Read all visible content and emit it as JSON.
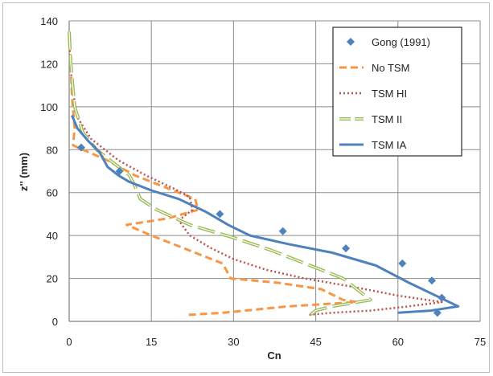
{
  "chart_data": {
    "type": "line",
    "title": "",
    "xlabel": "Cn",
    "ylabel": "z'' (mm)",
    "xlim": [
      0,
      75
    ],
    "ylim": [
      0,
      140
    ],
    "x_ticks": [
      "0",
      "15",
      "30",
      "45",
      "60",
      "75"
    ],
    "y_ticks": [
      "0",
      "20",
      "40",
      "60",
      "80",
      "100",
      "120",
      "140"
    ],
    "grid": true,
    "legend_position": "top-right",
    "series": [
      {
        "name": "Gong (1991)",
        "kind": "marker",
        "color": "#4f81bd",
        "points": [
          [
            2.2,
            81
          ],
          [
            9.2,
            70
          ],
          [
            27.5,
            50
          ],
          [
            39.0,
            42
          ],
          [
            50.5,
            34
          ],
          [
            60.8,
            27
          ],
          [
            66.2,
            19
          ],
          [
            68.0,
            11
          ],
          [
            67.2,
            4
          ]
        ]
      },
      {
        "name": "No TSM",
        "kind": "line",
        "dash": "dashed",
        "color": "#f79646",
        "points": [
          [
            0,
            135
          ],
          [
            0.3,
            120
          ],
          [
            0.5,
            105
          ],
          [
            1,
            90
          ],
          [
            0.7,
            82
          ],
          [
            2.5,
            80
          ],
          [
            7,
            75
          ],
          [
            12,
            68
          ],
          [
            18,
            62
          ],
          [
            23,
            57
          ],
          [
            23.5,
            52
          ],
          [
            18,
            48
          ],
          [
            10.5,
            45
          ],
          [
            15,
            40
          ],
          [
            20,
            35
          ],
          [
            25,
            30
          ],
          [
            28,
            27
          ],
          [
            29.5,
            20
          ],
          [
            38,
            18
          ],
          [
            46,
            15
          ],
          [
            50,
            10
          ],
          [
            52.5,
            9
          ],
          [
            40,
            7
          ],
          [
            28,
            4
          ],
          [
            21.5,
            3
          ]
        ]
      },
      {
        "name": "TSM HI",
        "kind": "line",
        "dash": "dotted",
        "color": "#c0504d",
        "points": [
          [
            0,
            130
          ],
          [
            0.5,
            110
          ],
          [
            1.5,
            95
          ],
          [
            4,
            85
          ],
          [
            9,
            75
          ],
          [
            14,
            68
          ],
          [
            19,
            62
          ],
          [
            22,
            58
          ],
          [
            22.5,
            52
          ],
          [
            20,
            47
          ],
          [
            22,
            40
          ],
          [
            26,
            34
          ],
          [
            30,
            29
          ],
          [
            36,
            24
          ],
          [
            43,
            20
          ],
          [
            52,
            16
          ],
          [
            60,
            12
          ],
          [
            68,
            9
          ],
          [
            62,
            7
          ],
          [
            55,
            5
          ],
          [
            48,
            4
          ],
          [
            43.5,
            3
          ]
        ]
      },
      {
        "name": "TSM II",
        "kind": "line",
        "dash": "longdash",
        "color": "#9bbb59",
        "points": [
          [
            0,
            135
          ],
          [
            0.3,
            120
          ],
          [
            1,
            100
          ],
          [
            2.5,
            88
          ],
          [
            5,
            80
          ],
          [
            8,
            74
          ],
          [
            11,
            68
          ],
          [
            12,
            63
          ],
          [
            13,
            57
          ],
          [
            16,
            52
          ],
          [
            22,
            45
          ],
          [
            30,
            39
          ],
          [
            37,
            33
          ],
          [
            44,
            26
          ],
          [
            50,
            20
          ],
          [
            55,
            10
          ],
          [
            48,
            7
          ],
          [
            45,
            5
          ],
          [
            44,
            3
          ]
        ]
      },
      {
        "name": "TSM IA",
        "kind": "line",
        "dash": "solid",
        "color": "#4f81bd",
        "points": [
          [
            0.5,
            96
          ],
          [
            1.5,
            90
          ],
          [
            3.5,
            84
          ],
          [
            5.5,
            79
          ],
          [
            7,
            72
          ],
          [
            9,
            68
          ],
          [
            11,
            65
          ],
          [
            15,
            61
          ],
          [
            20,
            57
          ],
          [
            25,
            51
          ],
          [
            29,
            45
          ],
          [
            33,
            40
          ],
          [
            40,
            36
          ],
          [
            48,
            32
          ],
          [
            56,
            26
          ],
          [
            62,
            18
          ],
          [
            71,
            7
          ],
          [
            66,
            5
          ],
          [
            60,
            4
          ]
        ]
      }
    ]
  }
}
